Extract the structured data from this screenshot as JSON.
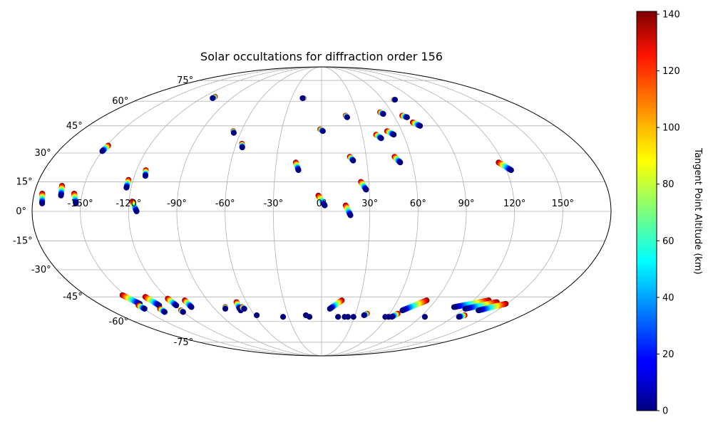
{
  "chart_data": {
    "type": "scatter",
    "projection": "mollweide",
    "title": "Solar occultations for diffraction order 156",
    "x_tick_labels": [
      {
        "lon": -150,
        "label": "-150°"
      },
      {
        "lon": -120,
        "label": "-120°"
      },
      {
        "lon": -90,
        "label": "-90°"
      },
      {
        "lon": -60,
        "label": "-60°"
      },
      {
        "lon": -30,
        "label": "-30°"
      },
      {
        "lon": 0,
        "label": "0°"
      },
      {
        "lon": 30,
        "label": "30°"
      },
      {
        "lon": 60,
        "label": "60°"
      },
      {
        "lon": 90,
        "label": "90°"
      },
      {
        "lon": 120,
        "label": "120°"
      },
      {
        "lon": 150,
        "label": "150°"
      }
    ],
    "y_tick_labels": [
      {
        "lat": 75,
        "label": "75°"
      },
      {
        "lat": 60,
        "label": "60°"
      },
      {
        "lat": 45,
        "label": "45°"
      },
      {
        "lat": 30,
        "label": "30°"
      },
      {
        "lat": 15,
        "label": "15°"
      },
      {
        "lat": 0,
        "label": "0°"
      },
      {
        "lat": -15,
        "label": "-15°"
      },
      {
        "lat": -30,
        "label": "-30°"
      },
      {
        "lat": -45,
        "label": "-45°"
      },
      {
        "lat": -60,
        "label": "-60°"
      },
      {
        "lat": -75,
        "label": "-75°"
      }
    ],
    "grid": true,
    "colorbar": {
      "label": "Tangent Point Altitude (km)",
      "colormap": "jet",
      "range": [
        0,
        141
      ],
      "ticks": [
        "0",
        "20",
        "40",
        "60",
        "80",
        "100",
        "120",
        "140"
      ]
    },
    "tracks": [
      {
        "lon": [
          -175,
          -174
        ],
        "lat": [
          9,
          4
        ]
      },
      {
        "lon": [
          -164,
          -163
        ],
        "lat": [
          13,
          8
        ]
      },
      {
        "lon": [
          -155,
          -153
        ],
        "lat": [
          9,
          4
        ]
      },
      {
        "lon": [
          -149,
          -150
        ],
        "lat": [
          34,
          31
        ]
      },
      {
        "lon": [
          -109,
          -109
        ],
        "lat": [
          63,
          62
        ]
      },
      {
        "lon": [
          -123,
          -123
        ],
        "lat": [
          16,
          12
        ]
      },
      {
        "lon": [
          -114,
          -113
        ],
        "lat": [
          21,
          18
        ]
      },
      {
        "lon": [
          -118,
          -115
        ],
        "lat": [
          5,
          0
        ]
      },
      {
        "lon": [
          -66,
          -65
        ],
        "lat": [
          42,
          41
        ]
      },
      {
        "lon": [
          -56,
          -55
        ],
        "lat": [
          35,
          33
        ]
      },
      {
        "lon": [
          -18,
          -19
        ],
        "lat": [
          62,
          62
        ]
      },
      {
        "lon": [
          -17,
          -15
        ],
        "lat": [
          25,
          21
        ]
      },
      {
        "lon": [
          -1,
          1
        ],
        "lat": [
          43,
          42
        ]
      },
      {
        "lon": [
          -2,
          2
        ],
        "lat": [
          8,
          3
        ]
      },
      {
        "lon": [
          15,
          18
        ],
        "lat": [
          3,
          -2
        ]
      },
      {
        "lon": [
          20,
          21
        ],
        "lat": [
          51,
          50
        ]
      },
      {
        "lon": [
          19,
          21
        ],
        "lat": [
          28,
          26
        ]
      },
      {
        "lon": [
          25,
          28
        ],
        "lat": [
          15,
          11
        ]
      },
      {
        "lon": [
          40,
          43
        ],
        "lat": [
          40,
          38
        ]
      },
      {
        "lon": [
          50,
          52
        ],
        "lat": [
          53,
          52
        ]
      },
      {
        "lon": [
          49,
          53
        ],
        "lat": [
          42,
          40
        ]
      },
      {
        "lon": [
          49,
          52
        ],
        "lat": [
          28,
          25
        ]
      },
      {
        "lon": [
          71,
          72
        ],
        "lat": [
          61,
          61
        ]
      },
      {
        "lon": [
          67,
          70
        ],
        "lat": [
          51,
          50
        ]
      },
      {
        "lon": [
          72,
          76
        ],
        "lat": [
          47,
          45
        ]
      },
      {
        "lon": [
          117,
          123
        ],
        "lat": [
          25,
          21
        ]
      },
      {
        "lon": [
          -152,
          -147
        ],
        "lat": [
          -44,
          -49
        ]
      },
      {
        "lon": [
          -150,
          -149
        ],
        "lat": [
          -50,
          -52
        ]
      },
      {
        "lon": [
          -136,
          -133
        ],
        "lat": [
          -45,
          -50
        ]
      },
      {
        "lon": [
          -136,
          -136
        ],
        "lat": [
          -52,
          -54
        ]
      },
      {
        "lon": [
          -120,
          -119
        ],
        "lat": [
          -46,
          -50
        ]
      },
      {
        "lon": [
          -120,
          -120
        ],
        "lat": [
          -53,
          -54
        ]
      },
      {
        "lon": [
          -108,
          -108
        ],
        "lat": [
          -47,
          -51
        ]
      },
      {
        "lon": [
          -80,
          -81
        ],
        "lat": [
          -51,
          -52
        ]
      },
      {
        "lon": [
          -68,
          -69
        ],
        "lat": [
          -48,
          -52
        ]
      },
      {
        "lon": [
          -69,
          -69
        ],
        "lat": [
          -53,
          -53
        ]
      },
      {
        "lon": [
          -66,
          -65
        ],
        "lat": [
          -51,
          -52
        ]
      },
      {
        "lon": [
          -58,
          -58
        ],
        "lat": [
          -56,
          -56
        ]
      },
      {
        "lon": [
          -35,
          -35
        ],
        "lat": [
          -57,
          -57
        ]
      },
      {
        "lon": [
          -14,
          -14
        ],
        "lat": [
          -56,
          -56
        ]
      },
      {
        "lon": [
          -11,
          -11
        ],
        "lat": [
          -57,
          -57
        ]
      },
      {
        "lon": [
          16,
          7
        ],
        "lat": [
          -47,
          -52
        ]
      },
      {
        "lon": [
          15,
          15
        ],
        "lat": [
          -57,
          -57
        ]
      },
      {
        "lon": [
          21,
          21
        ],
        "lat": [
          -57,
          -57
        ]
      },
      {
        "lon": [
          24,
          24
        ],
        "lat": [
          -57,
          -57
        ]
      },
      {
        "lon": [
          29,
          29
        ],
        "lat": [
          -57,
          -57
        ]
      },
      {
        "lon": [
          40,
          38
        ],
        "lat": [
          -55,
          -56
        ]
      },
      {
        "lon": [
          58,
          58
        ],
        "lat": [
          -57,
          -57
        ]
      },
      {
        "lon": [
          61,
          61
        ],
        "lat": [
          -57,
          -57
        ]
      },
      {
        "lon": [
          83,
          69
        ],
        "lat": [
          -47,
          -53
        ]
      },
      {
        "lon": [
          67,
          64
        ],
        "lat": [
          -55,
          -57
        ]
      },
      {
        "lon": [
          94,
          94
        ],
        "lat": [
          -57,
          -57
        ]
      },
      {
        "lon": [
          132,
          110
        ],
        "lat": [
          -47,
          -51
        ]
      },
      {
        "lon": [
          140,
          121
        ],
        "lat": [
          -48,
          -52
        ]
      },
      {
        "lon": [
          149,
          134
        ],
        "lat": [
          -49,
          -53
        ]
      },
      {
        "lon": [
          128,
          125
        ],
        "lat": [
          -56,
          -57
        ]
      }
    ]
  }
}
